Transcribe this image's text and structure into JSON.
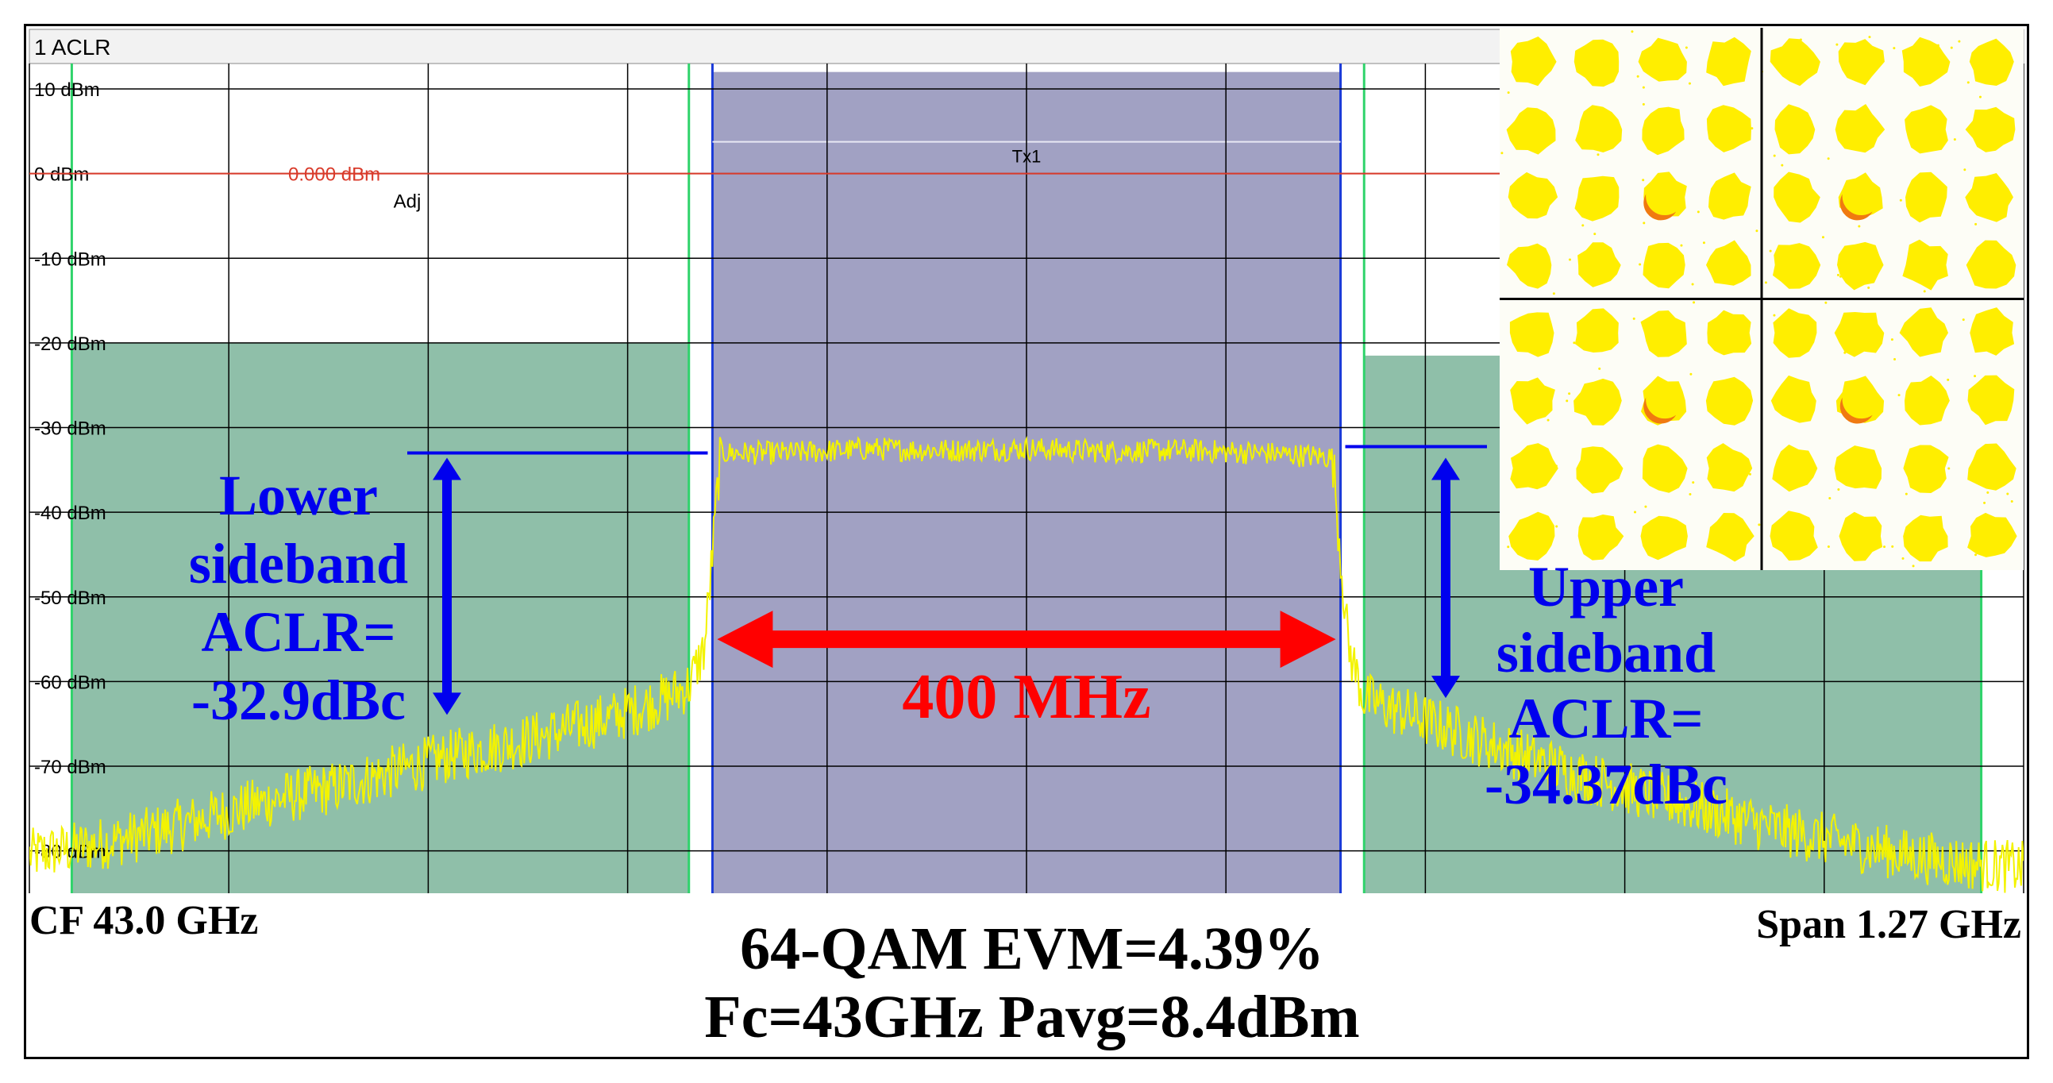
{
  "window_title": "1 ACLR",
  "colors": {
    "grid": "#000000",
    "trace": "#f3f300",
    "channel": "#a1a1c3",
    "adjacent": "#8fbfa9",
    "ref_line": "#d93a2a",
    "marker_blue": "#0000ee",
    "annotation_red": "#ff0000",
    "channel_edge": "#1a3ad8",
    "adjacent_edge": "#2fd36b",
    "constellation_point": "#ffee00",
    "constellation_highlight": "#f07a10"
  },
  "chart_data": {
    "type": "line",
    "title": "1 ACLR",
    "xlabel": "",
    "ylabel": "",
    "center_frequency": "CF 43.0 GHz",
    "span": "Span 1.27 GHz",
    "xlim": [
      -635,
      635
    ],
    "x_unit": "MHz",
    "ylim": [
      -85,
      13
    ],
    "y_unit": "dBm",
    "y_ticks": [
      10,
      0,
      -10,
      -20,
      -30,
      -40,
      -50,
      -60,
      -70,
      -80
    ],
    "y_tick_labels": [
      "10 dBm",
      "0 dBm",
      "-10 dBm",
      "-20 dBm",
      "-30 dBm",
      "-40 dBm",
      "-50 dBm",
      "-60 dBm",
      "-70 dBm",
      "-80 dBm"
    ],
    "reference_line": {
      "value": 0,
      "label": "0.000 dBm"
    },
    "regions": [
      {
        "name": "Adj",
        "label": "Adj",
        "x_start": -608,
        "x_end": -215,
        "level": -20
      },
      {
        "name": "Tx1",
        "label": "Tx1",
        "x_start": -200,
        "x_end": 200,
        "level": 12
      },
      {
        "name": "Adj upper",
        "label": "",
        "x_start": 215,
        "x_end": 608,
        "level": -21.5
      }
    ],
    "series": [
      {
        "x": [
          -635,
          -600,
          -560,
          -520,
          -480,
          -440,
          -400,
          -360,
          -320,
          -290,
          -260,
          -230,
          -215,
          -205,
          -200,
          -195,
          -150,
          -100,
          -50,
          0,
          50,
          100,
          150,
          195,
          200,
          205,
          215,
          230,
          260,
          290,
          320,
          360,
          400,
          440,
          480,
          520,
          560,
          600,
          635
        ],
        "y": [
          -80.5,
          -79.5,
          -78,
          -76,
          -74,
          -72.5,
          -70.5,
          -68.5,
          -67,
          -65.5,
          -64,
          -62,
          -60.5,
          -56,
          -45,
          -33,
          -33,
          -32.5,
          -32.7,
          -32.5,
          -32.8,
          -32.7,
          -33,
          -33.5,
          -45,
          -56,
          -62,
          -63,
          -65,
          -67,
          -69,
          -71.5,
          -73.5,
          -75.5,
          -77.5,
          -79,
          -80.5,
          -81.5,
          -82
        ]
      }
    ],
    "annotations": {
      "lower": {
        "lines": [
          "Lower",
          "sideband",
          "ACLR=",
          "-32.9dBc"
        ],
        "from": -33,
        "to": -64.5
      },
      "upper": {
        "lines": [
          "Upper",
          "sideband",
          "ACLR=",
          "-34.37dBc"
        ],
        "from": -33,
        "to": -62.5
      },
      "bandwidth": {
        "label": "400 MHz",
        "x_start": -200,
        "x_end": 200,
        "level": -55
      }
    },
    "footer": [
      "64-QAM EVM=4.39%",
      "Fc=43GHz Pavg=8.4dBm"
    ]
  },
  "constellation": {
    "type": "scatter",
    "order": "64-QAM",
    "points_per_axis": 8,
    "highlighted_points": [
      [
        -3,
        3
      ],
      [
        3,
        3
      ],
      [
        -3,
        -3
      ],
      [
        3,
        -3
      ]
    ]
  }
}
